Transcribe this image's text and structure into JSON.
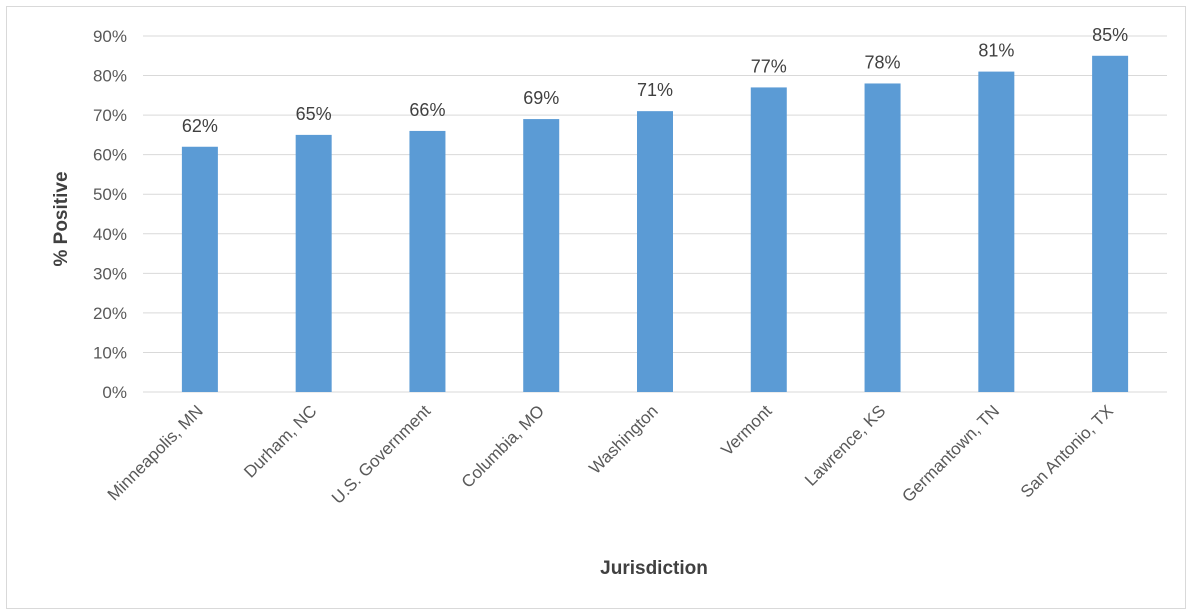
{
  "chart_data": {
    "type": "bar",
    "title": "",
    "xlabel": "Jurisdiction",
    "ylabel": "% Positive",
    "categories": [
      "Minneapolis, MN",
      "Durham, NC",
      "U.S. Government",
      "Columbia, MO",
      "Washington",
      "Vermont",
      "Lawrence, KS",
      "Germantown, TN",
      "San Antonio, TX"
    ],
    "values": [
      62,
      65,
      66,
      69,
      71,
      77,
      78,
      81,
      85
    ],
    "data_labels": [
      "62%",
      "65%",
      "66%",
      "69%",
      "71%",
      "77%",
      "78%",
      "81%",
      "85%"
    ],
    "ylim": [
      0,
      90
    ],
    "yticks": [
      0,
      10,
      20,
      30,
      40,
      50,
      60,
      70,
      80,
      90
    ],
    "ytick_labels": [
      "0%",
      "10%",
      "20%",
      "30%",
      "40%",
      "50%",
      "60%",
      "70%",
      "80%",
      "90%"
    ],
    "grid": true,
    "legend": "none",
    "colors": {
      "bar": "#5b9bd5",
      "grid": "#d9d9d9"
    }
  }
}
